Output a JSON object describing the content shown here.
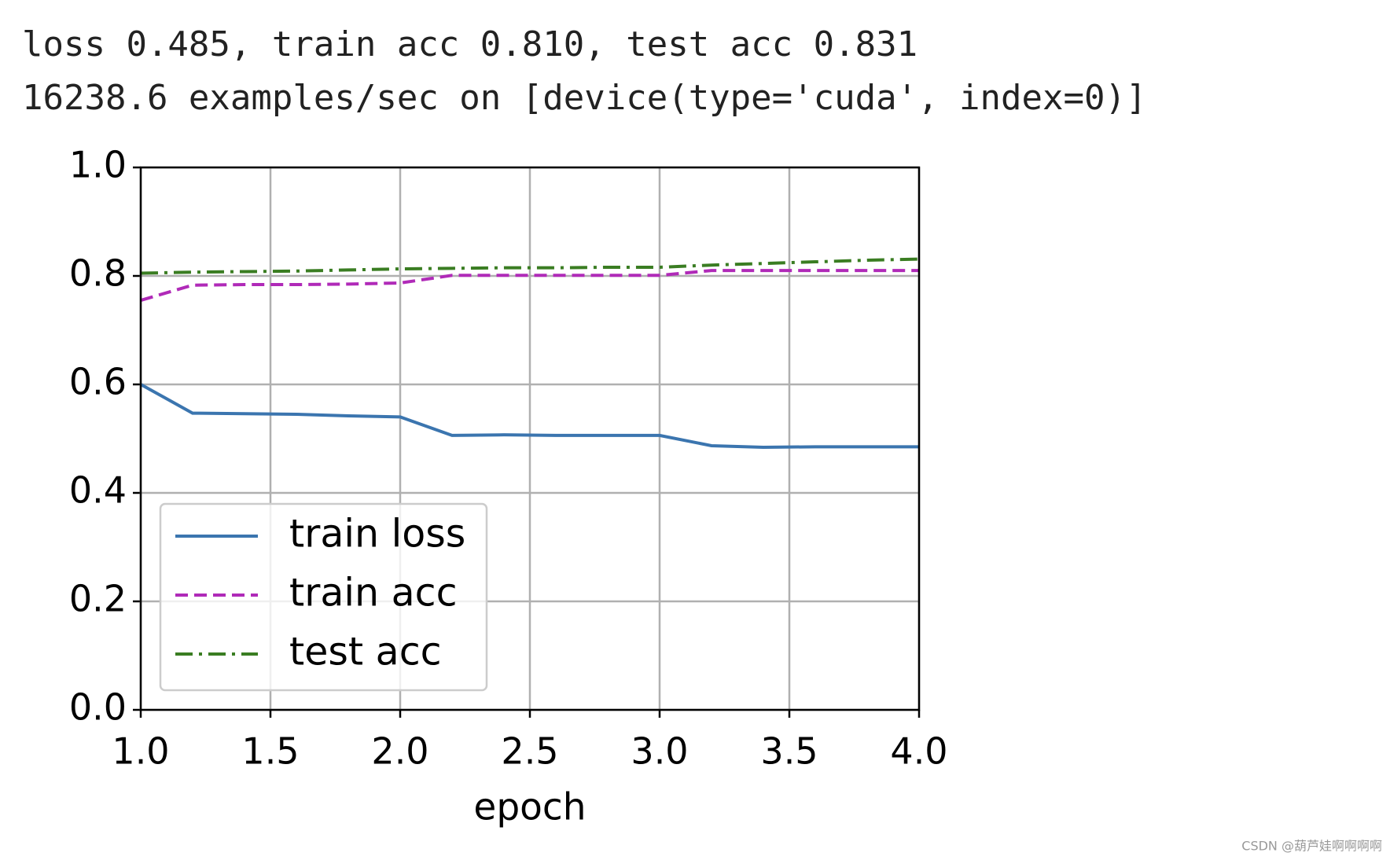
{
  "output": {
    "lines": [
      "loss 0.485, train acc 0.810, test acc 0.831",
      "16238.6 examples/sec on [device(type='cuda', index=0)]"
    ]
  },
  "watermark": "CSDN @葫芦娃啊啊啊啊",
  "chart_data": {
    "type": "line",
    "xlabel": "epoch",
    "x": [
      1.0,
      1.2,
      1.4,
      1.6,
      1.8,
      2.0,
      2.2,
      2.4,
      2.6,
      2.8,
      3.0,
      3.2,
      3.4,
      3.6,
      3.8,
      4.0
    ],
    "series": [
      {
        "name": "train loss",
        "color": "#3b75af",
        "linestyle": "solid",
        "values": [
          0.6,
          0.547,
          0.546,
          0.545,
          0.542,
          0.54,
          0.506,
          0.507,
          0.506,
          0.506,
          0.506,
          0.487,
          0.484,
          0.485,
          0.485,
          0.485
        ]
      },
      {
        "name": "train acc",
        "color": "#b02ab8",
        "linestyle": "dashed",
        "values": [
          0.755,
          0.783,
          0.784,
          0.784,
          0.785,
          0.787,
          0.801,
          0.801,
          0.801,
          0.801,
          0.801,
          0.81,
          0.81,
          0.81,
          0.81,
          0.81
        ]
      },
      {
        "name": "test acc",
        "color": "#3a7d22",
        "linestyle": "dashdot",
        "values": [
          0.805,
          0.807,
          0.808,
          0.809,
          0.811,
          0.813,
          0.814,
          0.815,
          0.815,
          0.816,
          0.816,
          0.82,
          0.823,
          0.826,
          0.829,
          0.831
        ]
      }
    ],
    "xlim": [
      1,
      4
    ],
    "xticks": [
      {
        "value": 1,
        "label": "1.0"
      },
      1.5,
      {
        "value": 2,
        "label": "2.0"
      },
      2.5,
      {
        "value": 3,
        "label": "3.0"
      },
      3.5,
      {
        "value": 4,
        "label": "4.0"
      }
    ],
    "ylim": [
      0,
      1
    ],
    "yticks": [
      {
        "value": 0,
        "label": "0.0"
      },
      0.2,
      0.4,
      0.6,
      0.8,
      {
        "value": 1,
        "label": "1.0"
      }
    ],
    "grid": true,
    "legend": "lower left"
  }
}
